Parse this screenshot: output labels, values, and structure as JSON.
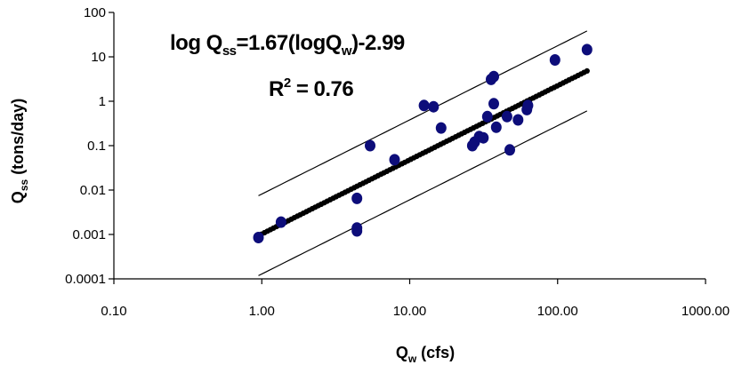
{
  "chart_data": {
    "type": "scatter",
    "title": "",
    "xlabel": {
      "main": "Q",
      "sub": "w",
      "rest": " (cfs)"
    },
    "ylabel": {
      "main": "Q",
      "sub": "ss",
      "rest": " (tons/day)"
    },
    "x_scale": "log",
    "y_scale": "log",
    "xlim": [
      0.1,
      1000
    ],
    "ylim": [
      0.0001,
      100
    ],
    "x_ticks": [
      0.1,
      1,
      10,
      100,
      1000
    ],
    "x_tick_labels": [
      "0.10",
      "1.00",
      "10.00",
      "100.00",
      "1000.00"
    ],
    "y_ticks": [
      0.0001,
      0.001,
      0.01,
      0.1,
      1,
      10,
      100
    ],
    "y_tick_labels": [
      "0.0001",
      "0.001",
      "0.01",
      "0.1",
      "1",
      "10",
      "100"
    ],
    "grid": false,
    "legend": "none",
    "annotations": {
      "equation": {
        "p1": "log Q",
        "s1": "ss",
        "p2": "=1.67(logQ",
        "s2": "w",
        "p3": ")-2.99"
      },
      "r2": {
        "p1": "R",
        "sup": "2",
        "p2": " = 0.76"
      }
    },
    "regression": {
      "slope": 1.67,
      "intercept": -2.99,
      "x_range": [
        0.95,
        158
      ]
    },
    "confidence_band": {
      "offset_log": 0.9,
      "x_range": [
        0.95,
        158
      ]
    },
    "points": [
      {
        "x": 0.95,
        "y": 0.00085
      },
      {
        "x": 1.35,
        "y": 0.0019
      },
      {
        "x": 4.4,
        "y": 0.0012
      },
      {
        "x": 4.4,
        "y": 0.0014
      },
      {
        "x": 4.4,
        "y": 0.0065
      },
      {
        "x": 5.4,
        "y": 0.1
      },
      {
        "x": 7.9,
        "y": 0.048
      },
      {
        "x": 12.5,
        "y": 0.8
      },
      {
        "x": 14.5,
        "y": 0.75
      },
      {
        "x": 16.3,
        "y": 0.25
      },
      {
        "x": 26.5,
        "y": 0.1
      },
      {
        "x": 27.5,
        "y": 0.12
      },
      {
        "x": 29.5,
        "y": 0.16
      },
      {
        "x": 31.5,
        "y": 0.15
      },
      {
        "x": 33.5,
        "y": 0.45
      },
      {
        "x": 35.5,
        "y": 3.1
      },
      {
        "x": 37,
        "y": 3.6
      },
      {
        "x": 37,
        "y": 0.88
      },
      {
        "x": 38.5,
        "y": 0.26
      },
      {
        "x": 45.5,
        "y": 0.45
      },
      {
        "x": 47.5,
        "y": 0.08
      },
      {
        "x": 54,
        "y": 0.38
      },
      {
        "x": 62,
        "y": 0.65
      },
      {
        "x": 63,
        "y": 0.8
      },
      {
        "x": 96,
        "y": 8.5
      },
      {
        "x": 158,
        "y": 14.5
      }
    ],
    "colors": {
      "points": "#0d0d7a",
      "regression": "#000000",
      "band": "#000000"
    }
  }
}
